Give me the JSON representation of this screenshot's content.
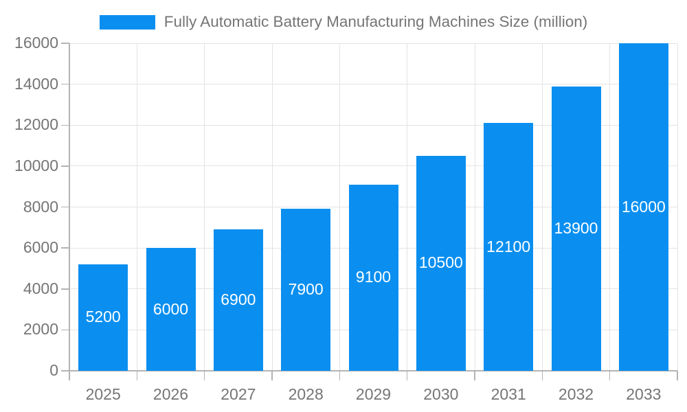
{
  "chart_data": {
    "type": "bar",
    "title": "Fully Automatic Battery Manufacturing Machines Size (million)",
    "legend_entries": [
      "Fully Automatic Battery Manufacturing Machines Size (million)"
    ],
    "legend_position": "top",
    "categories": [
      "2025",
      "2026",
      "2027",
      "2028",
      "2029",
      "2030",
      "2031",
      "2032",
      "2033"
    ],
    "values": [
      5200,
      6000,
      6900,
      7900,
      9100,
      10500,
      12100,
      13900,
      16000
    ],
    "xlabel": "",
    "ylabel": "",
    "ylim": [
      0,
      16000
    ],
    "ytick_step": 2000,
    "ytick_labels": [
      "0",
      "2000",
      "4000",
      "6000",
      "8000",
      "10000",
      "12000",
      "14000",
      "16000"
    ],
    "grid": true,
    "bar_color": "#0a8ff0",
    "bar_label_color": "#ffffff",
    "axis_text_color": "#757575",
    "gridline_color": "#e3e3e3",
    "axis_line_color": "#b3b3b3",
    "background_color": "#ffffff"
  }
}
